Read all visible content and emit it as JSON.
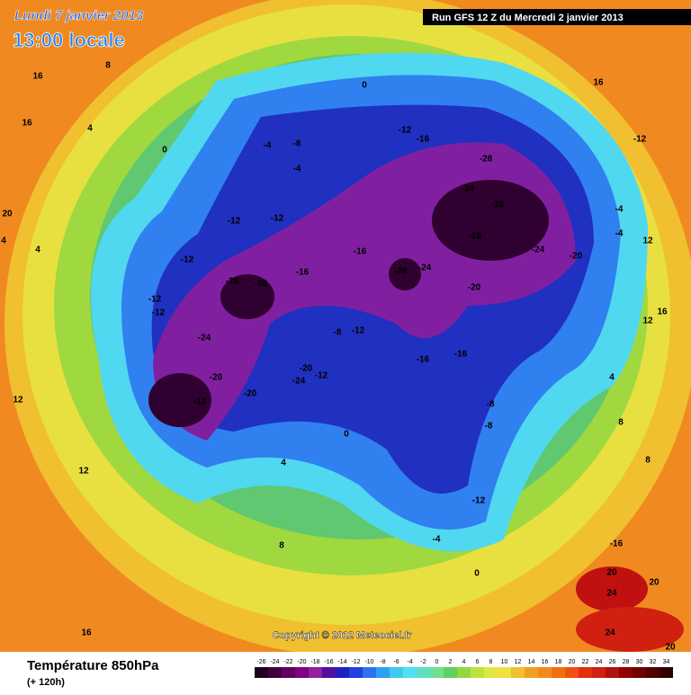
{
  "header": {
    "date": "Lundi 7 janvier 2013",
    "time": "13:00 locale",
    "run": "Run GFS 12 Z du Mercredi 2 janvier 2013"
  },
  "copyright": "Copyright © 2012 Meteociel.fr",
  "footer": {
    "title": "Température 850hPa",
    "subtitle": "(+ 120h)"
  },
  "scale": {
    "ticks": [
      -26,
      -24,
      -22,
      -20,
      -18,
      -16,
      -14,
      -12,
      -10,
      -8,
      -6,
      -4,
      -2,
      0,
      2,
      4,
      6,
      8,
      10,
      12,
      14,
      16,
      18,
      20,
      22,
      24,
      26,
      28,
      30,
      32,
      34
    ],
    "colors": [
      "#200020",
      "#400040",
      "#600060",
      "#800080",
      "#9020a0",
      "#5010a0",
      "#2020c0",
      "#2040e0",
      "#3070f0",
      "#30a0f0",
      "#40c8f0",
      "#50e0f0",
      "#60e0c0",
      "#70e090",
      "#60d060",
      "#90d840",
      "#c0e040",
      "#e0e840",
      "#f0e040",
      "#f0c030",
      "#f0a020",
      "#f08a20",
      "#f07010",
      "#f05010",
      "#e03010",
      "#d02010",
      "#b01010",
      "#900000",
      "#700000",
      "#500000",
      "#300000"
    ]
  },
  "map_labels": [
    16,
    8,
    16,
    4,
    0,
    -4,
    -8,
    -4,
    -12,
    -16,
    -28,
    -24,
    -28,
    -28,
    -24,
    -20,
    -28,
    -24,
    -20,
    -16,
    -16,
    -28,
    -28,
    -24,
    -20,
    -20,
    -12,
    -20,
    -24,
    -12,
    -8,
    -12,
    -16,
    -16,
    -8,
    -8,
    -12,
    -4,
    0,
    0,
    4,
    8,
    12,
    4,
    8,
    8,
    -16,
    20,
    24,
    24,
    20,
    20,
    20,
    4,
    4,
    -12,
    -12,
    -12,
    -12,
    -12,
    -4,
    -4,
    12,
    12,
    16,
    16,
    -12,
    0,
    16,
    12
  ]
}
